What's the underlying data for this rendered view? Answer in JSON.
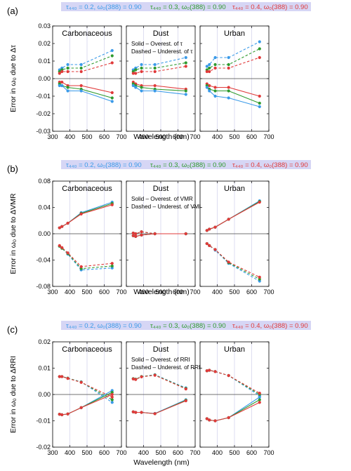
{
  "figure": {
    "xlabel": "Wavelength (nm)",
    "x_ticks": [
      300,
      400,
      500,
      600,
      700
    ],
    "panel_titles": [
      "Carbonaceous",
      "Dust",
      "Urban"
    ],
    "legend_items": [
      {
        "text": "τ₄₄₀ = 0.2, ω₀(388) = 0.90",
        "color": "#3a9ae8"
      },
      {
        "text": "τ₄₄₀ = 0.3, ω₀(388) = 0.90",
        "color": "#2e9a2e"
      },
      {
        "text": "τ₄₄₀ = 0.4, ω₀(388) = 0.90",
        "color": "#e03a3a"
      }
    ],
    "colors": {
      "blue": "#3a9ae8",
      "green": "#2e9a2e",
      "red": "#e03a3a",
      "legend_bg": "#d6d6f5"
    }
  },
  "chart_data": [
    {
      "type": "line",
      "row_label": "(a)",
      "ylabel": "Error in ω₀ due to Δτ",
      "note": [
        "Solid – Overest. of τ",
        "Dashed – Underest. of τ"
      ],
      "note_panel": 1,
      "ylim": [
        -0.03,
        0.03
      ],
      "y_ticks": [
        -0.03,
        -0.02,
        -0.01,
        0.0,
        0.01,
        0.02,
        0.03
      ],
      "y_tick_labels": [
        "-0.03",
        "-0.02",
        "-0.01",
        "0.00",
        "0.01",
        "0.02",
        "0.03"
      ],
      "xlim": [
        300,
        700
      ],
      "x": [
        340,
        354,
        388,
        466,
        646
      ],
      "panels": [
        {
          "title": "Carbonaceous",
          "series": [
            {
              "color": "blue",
              "style": "dashed",
              "values": [
                0.005,
                0.006,
                0.008,
                0.008,
                0.016
              ]
            },
            {
              "color": "green",
              "style": "dashed",
              "values": [
                0.004,
                0.005,
                0.006,
                0.006,
                0.013
              ]
            },
            {
              "color": "red",
              "style": "dashed",
              "values": [
                0.003,
                0.004,
                0.004,
                0.004,
                0.009
              ]
            },
            {
              "color": "red",
              "style": "solid",
              "values": [
                -0.002,
                -0.002,
                -0.004,
                -0.004,
                -0.008
              ]
            },
            {
              "color": "green",
              "style": "solid",
              "values": [
                -0.003,
                -0.004,
                -0.005,
                -0.006,
                -0.011
              ]
            },
            {
              "color": "blue",
              "style": "solid",
              "values": [
                -0.004,
                -0.004,
                -0.007,
                -0.007,
                -0.013
              ]
            }
          ]
        },
        {
          "title": "Dust",
          "series": [
            {
              "color": "blue",
              "style": "dashed",
              "values": [
                0.005,
                0.006,
                0.008,
                0.008,
                0.012
              ]
            },
            {
              "color": "green",
              "style": "dashed",
              "values": [
                0.004,
                0.005,
                0.006,
                0.006,
                0.009
              ]
            },
            {
              "color": "red",
              "style": "dashed",
              "values": [
                0.003,
                0.003,
                0.004,
                0.004,
                0.007
              ]
            },
            {
              "color": "red",
              "style": "solid",
              "values": [
                -0.002,
                -0.003,
                -0.004,
                -0.004,
                -0.006
              ]
            },
            {
              "color": "green",
              "style": "solid",
              "values": [
                -0.003,
                -0.004,
                -0.005,
                -0.006,
                -0.007
              ]
            },
            {
              "color": "blue",
              "style": "solid",
              "values": [
                -0.004,
                -0.005,
                -0.007,
                -0.007,
                -0.009
              ]
            }
          ]
        },
        {
          "title": "Urban",
          "series": [
            {
              "color": "blue",
              "style": "dashed",
              "values": [
                0.007,
                0.008,
                0.012,
                0.012,
                0.021
              ]
            },
            {
              "color": "green",
              "style": "dashed",
              "values": [
                0.005,
                0.006,
                0.008,
                0.008,
                0.017
              ]
            },
            {
              "color": "red",
              "style": "dashed",
              "values": [
                0.004,
                0.004,
                0.006,
                0.006,
                0.012
              ]
            },
            {
              "color": "red",
              "style": "solid",
              "values": [
                -0.003,
                -0.004,
                -0.005,
                -0.005,
                -0.01
              ]
            },
            {
              "color": "green",
              "style": "solid",
              "values": [
                -0.004,
                -0.006,
                -0.007,
                -0.007,
                -0.014
              ]
            },
            {
              "color": "blue",
              "style": "solid",
              "values": [
                -0.005,
                -0.007,
                -0.01,
                -0.011,
                -0.016
              ]
            }
          ]
        }
      ]
    },
    {
      "type": "line",
      "row_label": "(b)",
      "ylabel": "Error in ω₀ due to ΔVMR",
      "note": [
        "Solid – Overest. of VMR",
        "Dashed – Underest. of VMR"
      ],
      "note_panel": 1,
      "ylim": [
        -0.08,
        0.08
      ],
      "y_ticks": [
        -0.08,
        -0.04,
        0.0,
        0.04,
        0.08
      ],
      "y_tick_labels": [
        "-0.08",
        "-0.04",
        "0.00",
        "0.04",
        "0.08"
      ],
      "xlim": [
        300,
        700
      ],
      "x": [
        340,
        354,
        388,
        466,
        646
      ],
      "panels": [
        {
          "title": "Carbonaceous",
          "series": [
            {
              "color": "blue",
              "style": "solid",
              "values": [
                0.009,
                0.011,
                0.016,
                0.032,
                0.048
              ]
            },
            {
              "color": "green",
              "style": "solid",
              "values": [
                0.009,
                0.011,
                0.016,
                0.031,
                0.046
              ]
            },
            {
              "color": "red",
              "style": "solid",
              "values": [
                0.009,
                0.011,
                0.016,
                0.03,
                0.044
              ]
            },
            {
              "color": "blue",
              "style": "dashed",
              "values": [
                -0.019,
                -0.022,
                -0.031,
                -0.055,
                -0.052
              ]
            },
            {
              "color": "green",
              "style": "dashed",
              "values": [
                -0.019,
                -0.022,
                -0.03,
                -0.053,
                -0.049
              ]
            },
            {
              "color": "red",
              "style": "dashed",
              "values": [
                -0.018,
                -0.021,
                -0.029,
                -0.05,
                -0.045
              ]
            }
          ]
        },
        {
          "title": "Dust",
          "series": [
            {
              "color": "blue",
              "style": "solid",
              "values": [
                -0.003,
                -0.004,
                -0.002,
                0.0,
                0.0
              ]
            },
            {
              "color": "green",
              "style": "solid",
              "values": [
                -0.003,
                -0.004,
                -0.002,
                0.0,
                0.0
              ]
            },
            {
              "color": "red",
              "style": "solid",
              "values": [
                -0.003,
                -0.004,
                -0.002,
                0.0,
                0.0
              ]
            },
            {
              "color": "blue",
              "style": "dashed",
              "values": [
                0.001,
                0.0,
                0.003,
                0.0,
                0.0
              ]
            },
            {
              "color": "green",
              "style": "dashed",
              "values": [
                0.001,
                0.0,
                0.003,
                0.0,
                0.0
              ]
            },
            {
              "color": "red",
              "style": "dashed",
              "values": [
                0.001,
                0.0,
                0.003,
                0.0,
                0.0
              ]
            }
          ]
        },
        {
          "title": "Urban",
          "series": [
            {
              "color": "blue",
              "style": "solid",
              "values": [
                0.005,
                0.007,
                0.01,
                0.022,
                0.05
              ]
            },
            {
              "color": "green",
              "style": "solid",
              "values": [
                0.005,
                0.007,
                0.01,
                0.022,
                0.049
              ]
            },
            {
              "color": "red",
              "style": "solid",
              "values": [
                0.005,
                0.007,
                0.01,
                0.022,
                0.048
              ]
            },
            {
              "color": "blue",
              "style": "dashed",
              "values": [
                -0.015,
                -0.018,
                -0.025,
                -0.045,
                -0.072
              ]
            },
            {
              "color": "green",
              "style": "dashed",
              "values": [
                -0.015,
                -0.018,
                -0.024,
                -0.044,
                -0.069
              ]
            },
            {
              "color": "red",
              "style": "dashed",
              "values": [
                -0.015,
                -0.018,
                -0.024,
                -0.043,
                -0.066
              ]
            }
          ]
        }
      ]
    },
    {
      "type": "line",
      "row_label": "(c)",
      "ylabel": "Error in ω₀ due to ΔRRI",
      "note": [
        "Solid – Overest. of RRI",
        "Dashed – Underest. of RRI"
      ],
      "note_panel": 1,
      "ylim": [
        -0.02,
        0.02
      ],
      "y_ticks": [
        -0.02,
        -0.01,
        0.0,
        0.01,
        0.02
      ],
      "y_tick_labels": [
        "-0.02",
        "-0.01",
        "0.00",
        "0.01",
        "0.02"
      ],
      "xlim": [
        300,
        700
      ],
      "x": [
        340,
        354,
        388,
        466,
        646
      ],
      "panels": [
        {
          "title": "Carbonaceous",
          "series": [
            {
              "color": "blue",
              "style": "dashed",
              "values": [
                0.0068,
                0.0068,
                0.0062,
                0.0048,
                -0.003
              ]
            },
            {
              "color": "green",
              "style": "dashed",
              "values": [
                0.0068,
                0.0068,
                0.0062,
                0.0047,
                -0.002
              ]
            },
            {
              "color": "red",
              "style": "dashed",
              "values": [
                0.0068,
                0.0068,
                0.0061,
                0.0046,
                -0.001
              ]
            },
            {
              "color": "blue",
              "style": "solid",
              "values": [
                -0.0075,
                -0.0077,
                -0.0074,
                -0.005,
                0.0015
              ]
            },
            {
              "color": "green",
              "style": "solid",
              "values": [
                -0.0075,
                -0.0077,
                -0.0074,
                -0.005,
                0.0008
              ]
            },
            {
              "color": "red",
              "style": "solid",
              "values": [
                -0.0075,
                -0.0077,
                -0.0074,
                -0.005,
                0.0
              ]
            }
          ]
        },
        {
          "title": "Dust",
          "series": [
            {
              "color": "blue",
              "style": "dashed",
              "values": [
                0.006,
                0.0058,
                0.0068,
                0.0075,
                0.0025
              ]
            },
            {
              "color": "green",
              "style": "dashed",
              "values": [
                0.006,
                0.0058,
                0.0068,
                0.0074,
                0.0023
              ]
            },
            {
              "color": "red",
              "style": "dashed",
              "values": [
                0.0059,
                0.0057,
                0.0067,
                0.0073,
                0.0021
              ]
            },
            {
              "color": "blue",
              "style": "solid",
              "values": [
                -0.0066,
                -0.0068,
                -0.0068,
                -0.0072,
                -0.002
              ]
            },
            {
              "color": "green",
              "style": "solid",
              "values": [
                -0.0066,
                -0.0068,
                -0.0068,
                -0.0073,
                -0.0022
              ]
            },
            {
              "color": "red",
              "style": "solid",
              "values": [
                -0.0066,
                -0.0068,
                -0.0068,
                -0.0073,
                -0.0024
              ]
            }
          ]
        },
        {
          "title": "Urban",
          "series": [
            {
              "color": "blue",
              "style": "dashed",
              "values": [
                0.009,
                0.0092,
                0.0087,
                0.0072,
                -0.0005
              ]
            },
            {
              "color": "green",
              "style": "dashed",
              "values": [
                0.009,
                0.0092,
                0.0087,
                0.0072,
                0.0
              ]
            },
            {
              "color": "red",
              "style": "dashed",
              "values": [
                0.009,
                0.0092,
                0.0087,
                0.0072,
                0.0005
              ]
            },
            {
              "color": "blue",
              "style": "solid",
              "values": [
                -0.0092,
                -0.0097,
                -0.01,
                -0.0088,
                -0.001
              ]
            },
            {
              "color": "green",
              "style": "solid",
              "values": [
                -0.0092,
                -0.0097,
                -0.01,
                -0.0088,
                -0.002
              ]
            },
            {
              "color": "red",
              "style": "solid",
              "values": [
                -0.0092,
                -0.0097,
                -0.01,
                -0.0088,
                -0.003
              ]
            }
          ]
        }
      ]
    }
  ]
}
